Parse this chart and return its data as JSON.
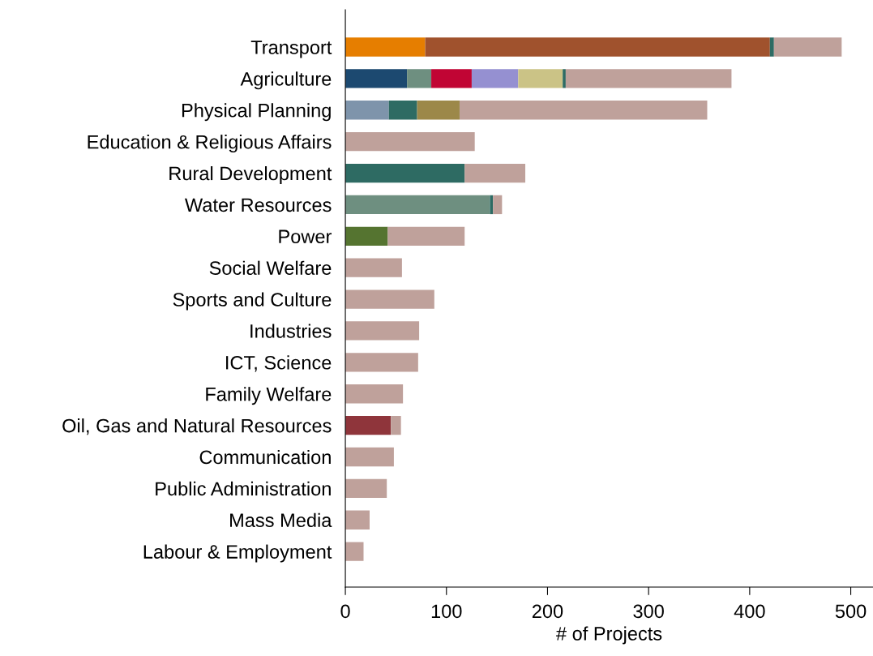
{
  "chart_data": {
    "type": "bar",
    "orientation": "horizontal",
    "stacked": true,
    "xlabel": "# of Projects",
    "categories": [
      "Transport",
      "Agriculture",
      "Physical Planning",
      "Education & Religious Affairs",
      "Rural Development",
      "Water Resources",
      "Power",
      "Social Welfare",
      "Sports and Culture",
      "Industries",
      "ICT, Science",
      "Family Welfare",
      "Oil, Gas and Natural Resources",
      "Communication",
      "Public Administration",
      "Mass Media",
      "Labour & Employment"
    ],
    "series": [
      {
        "values": [
          79,
          61,
          43,
          null,
          118,
          143,
          42,
          null,
          null,
          null,
          null,
          null,
          45,
          null,
          null,
          null,
          null
        ],
        "colors": [
          "#e67e00",
          "#1c4970",
          "#7e94ab",
          "#bfa19b",
          "#2e6b63",
          "#6e8f80",
          "#557430",
          "#bfa19b",
          "#bfa19b",
          "#bfa19b",
          "#bfa19b",
          "#bfa19b",
          "#8f353b",
          "#bfa19b",
          "#bfa19b",
          "#bfa19b",
          "#bfa19b"
        ]
      },
      {
        "values": [
          341,
          24,
          28,
          null,
          null,
          3,
          null,
          null,
          null,
          null,
          null,
          null,
          null,
          null,
          null,
          null,
          null
        ],
        "colors": [
          "#a0522d",
          "#6e8f80",
          "#2e6b63",
          "#bfa19b",
          "#bfa19b",
          "#2e6b63",
          "#bfa19b",
          "#bfa19b",
          "#bfa19b",
          "#bfa19b",
          "#bfa19b",
          "#bfa19b",
          "#bfa19b",
          "#bfa19b",
          "#bfa19b",
          "#bfa19b",
          "#bfa19b"
        ]
      },
      {
        "values": [
          4,
          40,
          42,
          null,
          null,
          null,
          null,
          null,
          null,
          null,
          null,
          null,
          null,
          null,
          null,
          null,
          null
        ],
        "colors": [
          "#2e6b63",
          "#c10534",
          "#9c8849",
          "#bfa19b",
          "#bfa19b",
          "#bfa19b",
          "#bfa19b",
          "#bfa19b",
          "#bfa19b",
          "#bfa19b",
          "#bfa19b",
          "#bfa19b",
          "#bfa19b",
          "#bfa19b",
          "#bfa19b",
          "#bfa19b",
          "#bfa19b"
        ]
      },
      {
        "values": [
          null,
          46,
          null,
          null,
          null,
          null,
          null,
          null,
          null,
          null,
          null,
          null,
          null,
          null,
          null,
          null,
          null
        ],
        "color": "#9590d1"
      },
      {
        "values": [
          null,
          44,
          null,
          null,
          null,
          null,
          null,
          null,
          null,
          null,
          null,
          null,
          null,
          null,
          null,
          null,
          null
        ],
        "color": "#cbc386"
      },
      {
        "values": [
          null,
          3,
          null,
          null,
          null,
          null,
          null,
          null,
          null,
          null,
          null,
          null,
          null,
          null,
          null,
          null,
          null
        ],
        "color": "#2e6b63"
      },
      {
        "values": [
          67,
          164,
          245,
          128,
          60,
          9,
          76,
          56,
          88,
          73,
          72,
          57,
          10,
          48,
          41,
          24,
          18
        ],
        "color": "#bfa19b"
      }
    ],
    "xlim": [
      0,
      522
    ],
    "xticks": [
      0,
      100,
      200,
      300,
      400,
      500
    ],
    "grid": false
  }
}
